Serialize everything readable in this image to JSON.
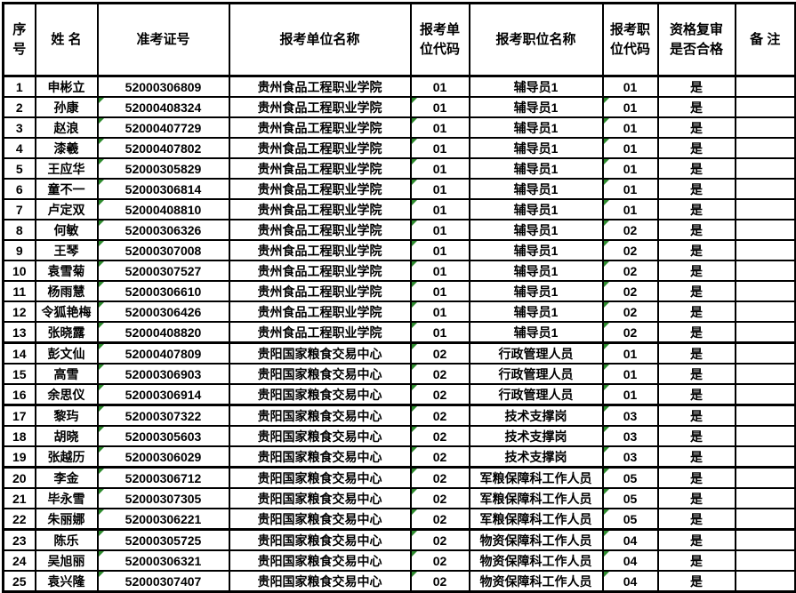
{
  "colors": {
    "border": "#000000",
    "background": "#ffffff",
    "text": "#000000",
    "flag_green": "#2e8b2e"
  },
  "table": {
    "columns": [
      "序号",
      "姓 名",
      "准考证号",
      "报考单位名称",
      "报考单位代码",
      "报考职位名称",
      "报考职位代码",
      "资格复审是否合格",
      "备 注"
    ],
    "thick_border_after_rows": [
      13,
      16,
      19,
      22
    ],
    "rows": [
      {
        "no": "1",
        "name": "申彬立",
        "ticket": "52000306809",
        "unit": "贵州食品工程职业学院",
        "unit_code": "01",
        "position": "辅导员1",
        "position_code": "01",
        "qualified": "是",
        "remark": "",
        "flagged": false
      },
      {
        "no": "2",
        "name": "孙康",
        "ticket": "52000408324",
        "unit": "贵州食品工程职业学院",
        "unit_code": "01",
        "position": "辅导员1",
        "position_code": "01",
        "qualified": "是",
        "remark": "",
        "flagged": true
      },
      {
        "no": "3",
        "name": "赵浪",
        "ticket": "52000407729",
        "unit": "贵州食品工程职业学院",
        "unit_code": "01",
        "position": "辅导员1",
        "position_code": "01",
        "qualified": "是",
        "remark": "",
        "flagged": true
      },
      {
        "no": "4",
        "name": "漆羲",
        "ticket": "52000407802",
        "unit": "贵州食品工程职业学院",
        "unit_code": "01",
        "position": "辅导员1",
        "position_code": "01",
        "qualified": "是",
        "remark": "",
        "flagged": true
      },
      {
        "no": "5",
        "name": "王应华",
        "ticket": "52000305829",
        "unit": "贵州食品工程职业学院",
        "unit_code": "01",
        "position": "辅导员1",
        "position_code": "01",
        "qualified": "是",
        "remark": "",
        "flagged": true
      },
      {
        "no": "6",
        "name": "童不一",
        "ticket": "52000306814",
        "unit": "贵州食品工程职业学院",
        "unit_code": "01",
        "position": "辅导员1",
        "position_code": "01",
        "qualified": "是",
        "remark": "",
        "flagged": true
      },
      {
        "no": "7",
        "name": "卢定双",
        "ticket": "52000408810",
        "unit": "贵州食品工程职业学院",
        "unit_code": "01",
        "position": "辅导员1",
        "position_code": "01",
        "qualified": "是",
        "remark": "",
        "flagged": true
      },
      {
        "no": "8",
        "name": "何敏",
        "ticket": "52000306326",
        "unit": "贵州食品工程职业学院",
        "unit_code": "01",
        "position": "辅导员1",
        "position_code": "02",
        "qualified": "是",
        "remark": "",
        "flagged": true
      },
      {
        "no": "9",
        "name": "王琴",
        "ticket": "52000307008",
        "unit": "贵州食品工程职业学院",
        "unit_code": "01",
        "position": "辅导员1",
        "position_code": "02",
        "qualified": "是",
        "remark": "",
        "flagged": true
      },
      {
        "no": "10",
        "name": "袁雪菊",
        "ticket": "52000307527",
        "unit": "贵州食品工程职业学院",
        "unit_code": "01",
        "position": "辅导员1",
        "position_code": "02",
        "qualified": "是",
        "remark": "",
        "flagged": true
      },
      {
        "no": "11",
        "name": "杨雨慧",
        "ticket": "52000306610",
        "unit": "贵州食品工程职业学院",
        "unit_code": "01",
        "position": "辅导员1",
        "position_code": "02",
        "qualified": "是",
        "remark": "",
        "flagged": true
      },
      {
        "no": "12",
        "name": "令狐艳梅",
        "ticket": "52000306426",
        "unit": "贵州食品工程职业学院",
        "unit_code": "01",
        "position": "辅导员1",
        "position_code": "02",
        "qualified": "是",
        "remark": "",
        "flagged": true
      },
      {
        "no": "13",
        "name": "张晓露",
        "ticket": "52000408820",
        "unit": "贵州食品工程职业学院",
        "unit_code": "01",
        "position": "辅导员1",
        "position_code": "02",
        "qualified": "是",
        "remark": "",
        "flagged": true
      },
      {
        "no": "14",
        "name": "彭文仙",
        "ticket": "52000407809",
        "unit": "贵阳国家粮食交易中心",
        "unit_code": "02",
        "position": "行政管理人员",
        "position_code": "01",
        "qualified": "是",
        "remark": "",
        "flagged": true
      },
      {
        "no": "15",
        "name": "高雪",
        "ticket": "52000306903",
        "unit": "贵阳国家粮食交易中心",
        "unit_code": "02",
        "position": "行政管理人员",
        "position_code": "01",
        "qualified": "是",
        "remark": "",
        "flagged": true
      },
      {
        "no": "16",
        "name": "余思仪",
        "ticket": "52000306914",
        "unit": "贵阳国家粮食交易中心",
        "unit_code": "02",
        "position": "行政管理人员",
        "position_code": "01",
        "qualified": "是",
        "remark": "",
        "flagged": true
      },
      {
        "no": "17",
        "name": "黎玙",
        "ticket": "52000307322",
        "unit": "贵阳国家粮食交易中心",
        "unit_code": "02",
        "position": "技术支撑岗",
        "position_code": "03",
        "qualified": "是",
        "remark": "",
        "flagged": true
      },
      {
        "no": "18",
        "name": "胡晓",
        "ticket": "52000305603",
        "unit": "贵阳国家粮食交易中心",
        "unit_code": "02",
        "position": "技术支撑岗",
        "position_code": "03",
        "qualified": "是",
        "remark": "",
        "flagged": true
      },
      {
        "no": "19",
        "name": "张越历",
        "ticket": "52000306029",
        "unit": "贵阳国家粮食交易中心",
        "unit_code": "02",
        "position": "技术支撑岗",
        "position_code": "03",
        "qualified": "是",
        "remark": "",
        "flagged": true
      },
      {
        "no": "20",
        "name": "李金",
        "ticket": "52000306712",
        "unit": "贵阳国家粮食交易中心",
        "unit_code": "02",
        "position": "军粮保障科工作人员",
        "position_code": "05",
        "qualified": "是",
        "remark": "",
        "flagged": true
      },
      {
        "no": "21",
        "name": "毕永雪",
        "ticket": "52000307305",
        "unit": "贵阳国家粮食交易中心",
        "unit_code": "02",
        "position": "军粮保障科工作人员",
        "position_code": "05",
        "qualified": "是",
        "remark": "",
        "flagged": true
      },
      {
        "no": "22",
        "name": "朱丽娜",
        "ticket": "52000306221",
        "unit": "贵阳国家粮食交易中心",
        "unit_code": "02",
        "position": "军粮保障科工作人员",
        "position_code": "05",
        "qualified": "是",
        "remark": "",
        "flagged": true
      },
      {
        "no": "23",
        "name": "陈乐",
        "ticket": "52000305725",
        "unit": "贵阳国家粮食交易中心",
        "unit_code": "02",
        "position": "物资保障科工作人员",
        "position_code": "04",
        "qualified": "是",
        "remark": "",
        "flagged": true
      },
      {
        "no": "24",
        "name": "吴旭丽",
        "ticket": "52000306321",
        "unit": "贵阳国家粮食交易中心",
        "unit_code": "02",
        "position": "物资保障科工作人员",
        "position_code": "04",
        "qualified": "是",
        "remark": "",
        "flagged": true
      },
      {
        "no": "25",
        "name": "袁兴隆",
        "ticket": "52000307407",
        "unit": "贵阳国家粮食交易中心",
        "unit_code": "02",
        "position": "物资保障科工作人员",
        "position_code": "04",
        "qualified": "是",
        "remark": "",
        "flagged": true
      }
    ]
  }
}
